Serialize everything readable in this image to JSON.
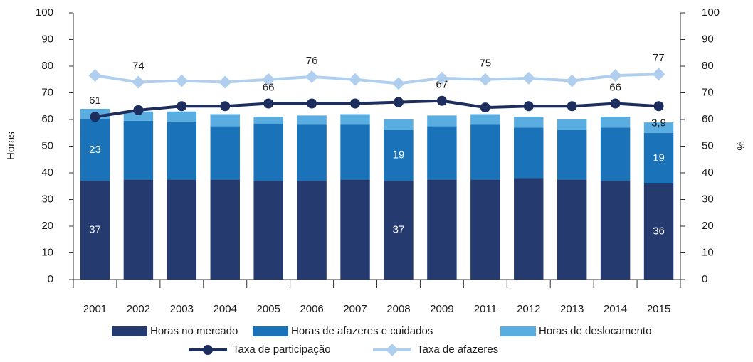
{
  "chart_data": {
    "type": "bar-line",
    "categories": [
      "2001",
      "2002",
      "2003",
      "2004",
      "2005",
      "2006",
      "2007",
      "2008",
      "2009",
      "2011",
      "2012",
      "2013",
      "2014",
      "2015"
    ],
    "y_label": "Horas",
    "y2_label": "%",
    "ylim": [
      0,
      100
    ],
    "yticks": [
      0,
      10,
      20,
      30,
      40,
      50,
      60,
      70,
      80,
      90,
      100
    ],
    "y2lim": [
      0,
      100
    ],
    "y2ticks": [
      0,
      10,
      20,
      30,
      40,
      50,
      60,
      70,
      80,
      90,
      100
    ],
    "series": [
      {
        "name": "Horas no mercado",
        "kind": "bar",
        "color": "#253a6e",
        "label_color": "#ffffff",
        "values": [
          37,
          37.5,
          37.5,
          37.5,
          37,
          37,
          37.5,
          37,
          37.5,
          37.5,
          38,
          37.5,
          37,
          36
        ],
        "value_labels": [
          "37",
          null,
          null,
          null,
          null,
          null,
          null,
          "37",
          null,
          null,
          null,
          null,
          null,
          "36"
        ]
      },
      {
        "name": "Horas de afazeres e cuidados",
        "kind": "bar",
        "color": "#1a72b8",
        "label_color": "#ffffff",
        "values": [
          23,
          22,
          21.5,
          20,
          21.5,
          21,
          20.5,
          19,
          20,
          20.5,
          19,
          18.5,
          20,
          19
        ],
        "value_labels": [
          "23",
          null,
          null,
          null,
          null,
          null,
          null,
          "19",
          null,
          null,
          null,
          null,
          null,
          "19"
        ]
      },
      {
        "name": "Horas de deslocamento",
        "kind": "bar",
        "color": "#5aade0",
        "label_color": "#1a1a1a",
        "values": [
          4,
          3.5,
          4,
          4.5,
          2.5,
          3.5,
          4,
          4,
          4,
          4,
          4,
          4,
          4,
          3.9
        ],
        "value_labels": [
          null,
          null,
          null,
          null,
          null,
          null,
          null,
          null,
          null,
          null,
          null,
          null,
          null,
          "3,9"
        ]
      },
      {
        "name": "Taxa de participação",
        "kind": "line",
        "axis": "y2",
        "color": "#1c2d5e",
        "marker": "circle",
        "label_color": "#1a1a1a",
        "values": [
          61,
          63.5,
          65,
          65,
          66,
          66,
          66,
          66.5,
          67,
          64.5,
          65,
          65,
          66,
          65
        ],
        "value_labels": [
          "61",
          null,
          null,
          null,
          "66",
          null,
          null,
          null,
          "67",
          null,
          null,
          null,
          "66",
          null
        ]
      },
      {
        "name": "Taxa de afazeres",
        "kind": "line",
        "axis": "y2",
        "color": "#b0cfee",
        "marker": "diamond",
        "label_color": "#1a1a1a",
        "values": [
          76.5,
          74,
          74.5,
          74,
          75,
          76,
          75,
          73.5,
          75.5,
          75,
          75.5,
          74.5,
          76.5,
          77
        ],
        "value_labels": [
          null,
          "74",
          null,
          null,
          null,
          "76",
          null,
          null,
          null,
          "75",
          null,
          null,
          null,
          "77"
        ]
      }
    ]
  }
}
